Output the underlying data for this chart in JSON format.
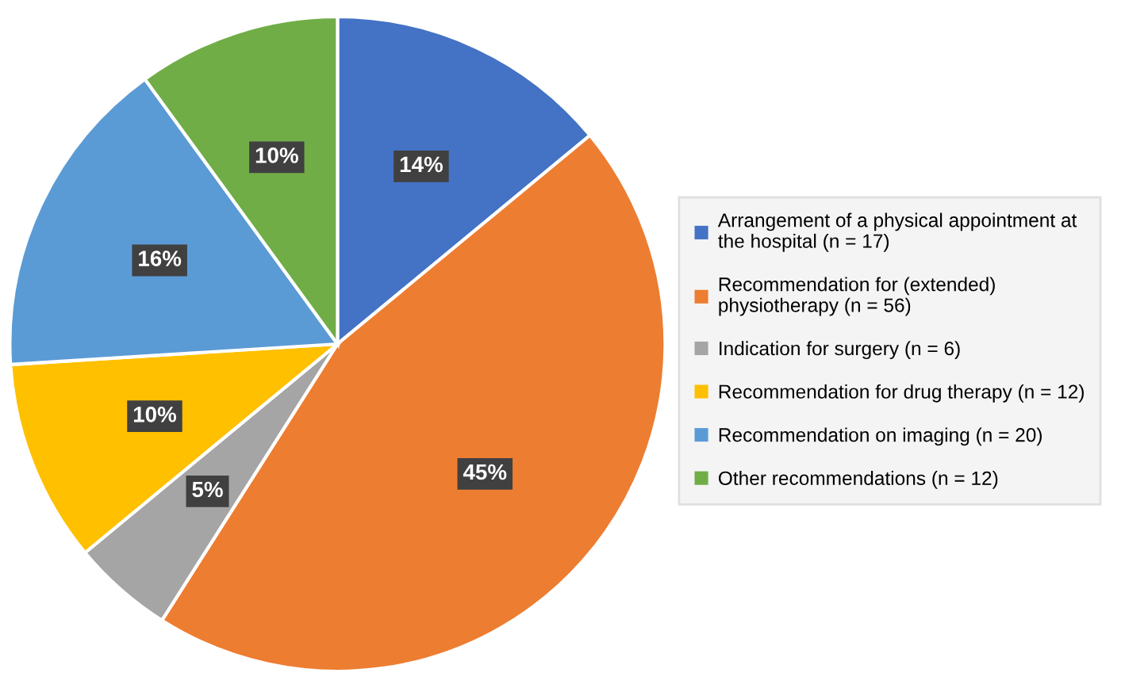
{
  "chart_data": {
    "type": "pie",
    "categories": [
      "Arrangement of a physical appointment at\nthe hospital (n = 17)",
      "Recommendation for (extended)\nphysiotherapy (n = 56)",
      "Indication for surgery (n = 6)",
      "Recommendation for drug therapy (n = 12)",
      "Recommendation on imaging (n = 20)",
      "Other recommendations (n = 12)"
    ],
    "values": [
      14,
      45,
      5,
      10,
      16,
      10
    ],
    "colors": [
      "#4472c4",
      "#ed7d31",
      "#a5a5a5",
      "#ffc000",
      "#5b9bd5",
      "#70ad47"
    ],
    "value_labels": [
      "14%",
      "45%",
      "5%",
      "10%",
      "16%",
      "10%"
    ],
    "legend": "right"
  }
}
